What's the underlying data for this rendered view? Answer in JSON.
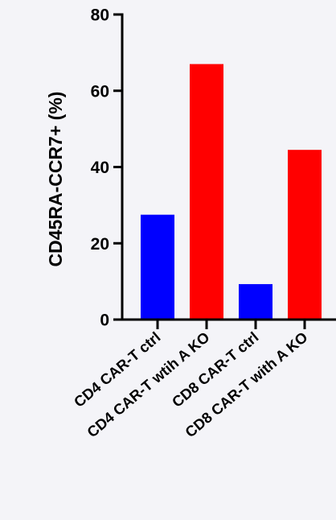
{
  "chart_data": {
    "type": "bar",
    "title": "",
    "xlabel": "",
    "ylabel": "CD45RA-CCR7+ (%)",
    "ylim": [
      0,
      80
    ],
    "yticks": [
      0,
      20,
      40,
      60,
      80
    ],
    "categories": [
      "CD4 CAR-T ctrl",
      "CD4 CAR-T wtih A KO",
      "CD8 CAR-T ctrl",
      "CD8 CAR-T with A KO"
    ],
    "values": [
      27.5,
      67,
      9.3,
      44.5
    ],
    "bar_colors": [
      "#0000ff",
      "#ff0000",
      "#0000ff",
      "#ff0000"
    ],
    "grid": false,
    "legend": "none"
  }
}
